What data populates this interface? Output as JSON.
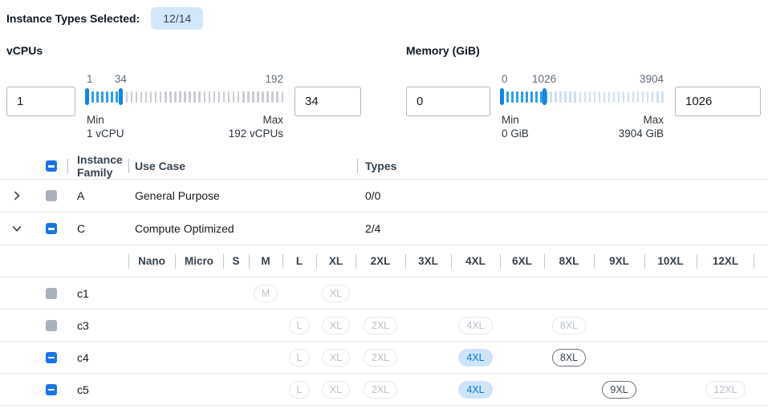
{
  "header": {
    "label": "Instance Types Selected:",
    "count_badge": "12/14"
  },
  "filters": {
    "vcpus": {
      "title": "vCPUs",
      "min_input_value": "1",
      "max_input_value": "34",
      "scale": {
        "low": "1",
        "mid": "34",
        "high": "192"
      },
      "min_caption": {
        "line1": "Min",
        "line2": "1 vCPU"
      },
      "max_caption": {
        "line1": "Max",
        "line2": "192 vCPUs"
      },
      "range": {
        "min": 1,
        "max": 192,
        "selected_low": 1,
        "selected_high": 34
      }
    },
    "memory": {
      "title": "Memory (GiB)",
      "min_input_value": "0",
      "max_input_value": "1026",
      "scale": {
        "low": "0",
        "mid": "1026",
        "high": "3904"
      },
      "min_caption": {
        "line1": "Min",
        "line2": "0 GiB"
      },
      "max_caption": {
        "line1": "Max",
        "line2": "3904 GiB"
      },
      "range": {
        "min": 0,
        "max": 3904,
        "selected_low": 0,
        "selected_high": 1026
      }
    }
  },
  "table": {
    "columns": {
      "family": "Instance Family",
      "use_case": "Use Case",
      "types": "Types"
    },
    "select_all_state": "indeterminate",
    "size_columns": [
      "Nano",
      "Micro",
      "S",
      "M",
      "L",
      "XL",
      "2XL",
      "3XL",
      "4XL",
      "6XL",
      "8XL",
      "9XL",
      "10XL",
      "12XL"
    ],
    "family_rows": [
      {
        "name": "A",
        "use_case": "General Purpose",
        "types": "0/0",
        "checkbox": "disabled",
        "expanded": false
      },
      {
        "name": "C",
        "use_case": "Compute Optimized",
        "types": "2/4",
        "checkbox": "indeterminate",
        "expanded": true
      }
    ],
    "instance_rows": [
      {
        "name": "c1",
        "checkbox": "disabled",
        "sizes": {
          "M": "disabled",
          "XL": "disabled"
        }
      },
      {
        "name": "c3",
        "checkbox": "disabled",
        "sizes": {
          "L": "disabled",
          "XL": "disabled",
          "2XL": "disabled",
          "4XL": "disabled",
          "8XL": "disabled"
        }
      },
      {
        "name": "c4",
        "checkbox": "indeterminate",
        "sizes": {
          "L": "disabled",
          "XL": "disabled",
          "2XL": "disabled",
          "4XL": "selected",
          "8XL": "enabled"
        }
      },
      {
        "name": "c5",
        "checkbox": "indeterminate",
        "sizes": {
          "L": "disabled",
          "XL": "disabled",
          "2XL": "disabled",
          "4XL": "selected",
          "9XL": "enabled",
          "12XL": "disabled"
        }
      }
    ]
  },
  "colors": {
    "accent_blue": "#1974e8",
    "slider_fill_blue": "#2e9df3",
    "slider_handle_blue": "#1285e6",
    "slider_unfilled_vcpu": "#c9cdd3",
    "slider_unfilled_memory": "#cfe0f5",
    "count_badge_bg": "#d3e7fb",
    "selected_pill_bg": "#cde4fa",
    "selected_pill_text": "#0b74d6",
    "disabled_checkbox_gray": "#a9b1bb",
    "divider": "#e4e7ea"
  }
}
